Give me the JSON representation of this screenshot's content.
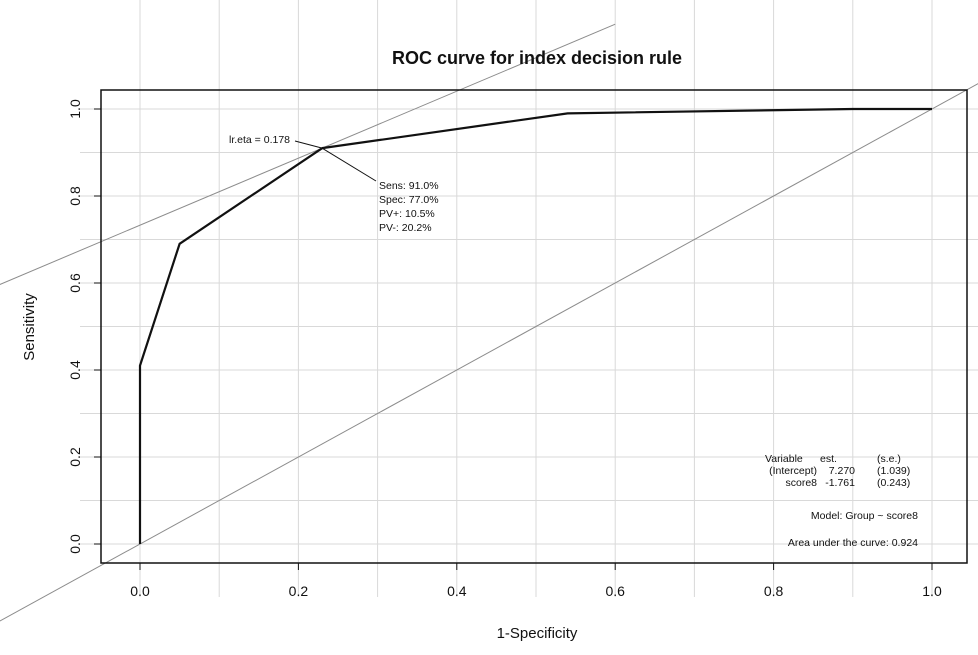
{
  "chart_data": {
    "type": "line",
    "title": "ROC curve for index decision rule",
    "xlabel": "1-Specificity",
    "ylabel": "Sensitivity",
    "xlim": [
      0,
      1
    ],
    "ylim": [
      0,
      1
    ],
    "x_ticks": [
      "0.0",
      "0.2",
      "0.4",
      "0.6",
      "0.8",
      "1.0"
    ],
    "y_ticks": [
      "0.0",
      "0.2",
      "0.4",
      "0.6",
      "0.8",
      "1.0"
    ],
    "grid": true,
    "series": [
      {
        "x": [
          0.0,
          0.0,
          0.05,
          0.23,
          0.54,
          0.9,
          1.0
        ],
        "y": [
          0.0,
          0.41,
          0.69,
          0.91,
          0.99,
          1.0,
          1.0
        ]
      }
    ],
    "reference_lines": [
      {
        "kind": "diagonal",
        "from": [
          0,
          0
        ],
        "to": [
          1,
          1
        ]
      },
      {
        "kind": "tangent",
        "through": [
          0.23,
          0.91
        ],
        "slope": 0.77
      }
    ],
    "cutoff_point": {
      "x": 0.23,
      "y": 0.91,
      "label": "lr.eta = 0.178",
      "stats": [
        "Sens: 91.0%",
        "Spec: 77.0%",
        "PV+: 10.5%",
        "PV-: 20.2%"
      ]
    },
    "model_table": {
      "header": [
        "Variable",
        "est.",
        "(s.e.)"
      ],
      "rows": [
        [
          "(Intercept)",
          "7.270",
          "(1.039)"
        ],
        [
          "score8",
          "-1.761",
          "(0.243)"
        ]
      ],
      "model": "Model:  Group ~ score8",
      "auc": "Area under the curve: 0.924"
    }
  }
}
